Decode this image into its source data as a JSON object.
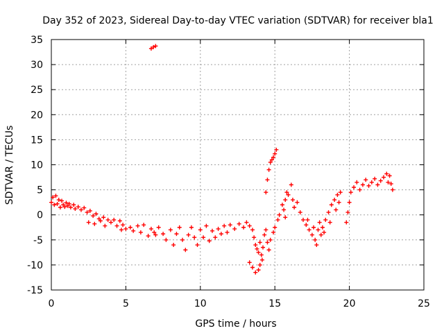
{
  "chart_data": {
    "type": "scatter",
    "title": "Day 352 of 2023, Sidereal Day-to-day VTEC variation (SDTVAR) for receiver bla1",
    "xlabel": "GPS time / hours",
    "ylabel": "SDTVAR / TECUs",
    "xlim": [
      0,
      25
    ],
    "ylim": [
      -15,
      35
    ],
    "xticks": [
      0,
      5,
      10,
      15,
      20,
      25
    ],
    "yticks": [
      -15,
      -10,
      -5,
      0,
      5,
      10,
      15,
      20,
      25,
      30,
      35
    ],
    "grid": true,
    "marker": "plus",
    "color": "#ff0000",
    "series": [
      {
        "name": "SDTVAR",
        "points": [
          [
            0.0,
            2.5
          ],
          [
            0.1,
            3.5
          ],
          [
            0.2,
            2.0
          ],
          [
            0.3,
            3.8
          ],
          [
            0.4,
            2.2
          ],
          [
            0.5,
            3.0
          ],
          [
            0.6,
            1.5
          ],
          [
            0.7,
            2.8
          ],
          [
            0.8,
            2.0
          ],
          [
            0.9,
            1.6
          ],
          [
            1.0,
            2.4
          ],
          [
            1.1,
            1.8
          ],
          [
            1.2,
            2.2
          ],
          [
            1.3,
            1.5
          ],
          [
            1.5,
            2.0
          ],
          [
            1.6,
            1.2
          ],
          [
            1.8,
            1.6
          ],
          [
            2.0,
            1.0
          ],
          [
            2.2,
            1.4
          ],
          [
            2.4,
            0.5
          ],
          [
            2.5,
            -1.5
          ],
          [
            2.6,
            0.8
          ],
          [
            2.8,
            -0.2
          ],
          [
            2.9,
            -1.8
          ],
          [
            3.0,
            0.2
          ],
          [
            3.2,
            -0.8
          ],
          [
            3.3,
            -1.2
          ],
          [
            3.5,
            -0.5
          ],
          [
            3.6,
            -2.2
          ],
          [
            3.8,
            -1.0
          ],
          [
            4.0,
            -1.5
          ],
          [
            4.2,
            -1.0
          ],
          [
            4.4,
            -2.2
          ],
          [
            4.6,
            -1.2
          ],
          [
            4.7,
            -3.0
          ],
          [
            4.8,
            -2.0
          ],
          [
            5.0,
            -2.8
          ],
          [
            5.3,
            -2.5
          ],
          [
            5.5,
            -3.2
          ],
          [
            5.8,
            -2.2
          ],
          [
            6.0,
            -3.5
          ],
          [
            6.2,
            -2.0
          ],
          [
            6.5,
            -4.2
          ],
          [
            6.7,
            -2.8
          ],
          [
            6.9,
            -3.5
          ],
          [
            7.0,
            -4.0
          ],
          [
            7.2,
            -2.5
          ],
          [
            7.5,
            -3.8
          ],
          [
            7.7,
            -5.0
          ],
          [
            8.0,
            -3.0
          ],
          [
            8.2,
            -6.0
          ],
          [
            8.4,
            -3.8
          ],
          [
            8.6,
            -2.5
          ],
          [
            8.8,
            -5.0
          ],
          [
            9.0,
            -7.0
          ],
          [
            9.2,
            -4.0
          ],
          [
            9.4,
            -2.5
          ],
          [
            9.6,
            -4.5
          ],
          [
            9.8,
            -6.0
          ],
          [
            10.0,
            -3.0
          ],
          [
            10.2,
            -4.5
          ],
          [
            10.4,
            -2.2
          ],
          [
            10.6,
            -5.2
          ],
          [
            10.8,
            -3.2
          ],
          [
            11.0,
            -4.5
          ],
          [
            11.2,
            -2.8
          ],
          [
            11.4,
            -3.8
          ],
          [
            11.6,
            -2.2
          ],
          [
            11.8,
            -3.5
          ],
          [
            12.0,
            -2.0
          ],
          [
            12.3,
            -2.8
          ],
          [
            12.6,
            -1.8
          ],
          [
            12.9,
            -2.5
          ],
          [
            13.1,
            -1.5
          ],
          [
            13.3,
            -2.2
          ],
          [
            13.5,
            -3.0
          ],
          [
            13.6,
            -4.5
          ],
          [
            13.7,
            -6.0
          ],
          [
            13.8,
            -6.8
          ],
          [
            13.9,
            -7.5
          ],
          [
            14.0,
            -5.5
          ],
          [
            14.1,
            -8.0
          ],
          [
            14.2,
            -6.5
          ],
          [
            14.3,
            -4.0
          ],
          [
            14.4,
            -3.0
          ],
          [
            14.5,
            -5.5
          ],
          [
            14.6,
            -7.0
          ],
          [
            14.7,
            -5.0
          ],
          [
            14.9,
            -3.5
          ],
          [
            15.0,
            -2.5
          ],
          [
            13.3,
            -9.5
          ],
          [
            13.5,
            -10.5
          ],
          [
            13.7,
            -11.5
          ],
          [
            13.9,
            -11.0
          ],
          [
            14.0,
            -10.0
          ],
          [
            14.15,
            -9.0
          ],
          [
            14.4,
            4.5
          ],
          [
            14.5,
            7.0
          ],
          [
            14.6,
            9.0
          ],
          [
            14.7,
            10.5
          ],
          [
            14.8,
            11.0
          ],
          [
            14.9,
            11.5
          ],
          [
            15.0,
            12.2
          ],
          [
            15.1,
            13.0
          ],
          [
            15.2,
            -1.0
          ],
          [
            15.3,
            0.0
          ],
          [
            15.5,
            2.0
          ],
          [
            15.6,
            1.0
          ],
          [
            15.7,
            3.0
          ],
          [
            15.8,
            4.5
          ],
          [
            15.9,
            4.0
          ],
          [
            15.7,
            -0.5
          ],
          [
            16.1,
            6.0
          ],
          [
            16.2,
            3.0
          ],
          [
            16.3,
            1.5
          ],
          [
            16.5,
            2.5
          ],
          [
            16.7,
            0.5
          ],
          [
            16.9,
            -1.0
          ],
          [
            17.1,
            -2.0
          ],
          [
            17.3,
            -3.0
          ],
          [
            17.5,
            -4.0
          ],
          [
            17.7,
            -5.0
          ],
          [
            17.8,
            -6.0
          ],
          [
            17.9,
            -3.0
          ],
          [
            18.0,
            -1.5
          ],
          [
            18.2,
            -2.5
          ],
          [
            18.4,
            -1.0
          ],
          [
            18.6,
            0.5
          ],
          [
            18.8,
            2.0
          ],
          [
            19.0,
            3.0
          ],
          [
            19.2,
            4.0
          ],
          [
            19.4,
            4.5
          ],
          [
            17.2,
            -1.0
          ],
          [
            17.6,
            -2.5
          ],
          [
            18.1,
            -4.0
          ],
          [
            18.3,
            -3.5
          ],
          [
            18.7,
            -1.5
          ],
          [
            19.1,
            1.0
          ],
          [
            19.3,
            2.5
          ],
          [
            19.8,
            -1.5
          ],
          [
            19.9,
            0.5
          ],
          [
            20.0,
            2.5
          ],
          [
            20.1,
            4.5
          ],
          [
            20.3,
            5.5
          ],
          [
            20.5,
            6.5
          ],
          [
            20.7,
            5.0
          ],
          [
            20.9,
            6.0
          ],
          [
            21.1,
            7.0
          ],
          [
            21.3,
            5.8
          ],
          [
            21.5,
            6.5
          ],
          [
            21.7,
            7.2
          ],
          [
            21.9,
            6.0
          ],
          [
            22.1,
            6.8
          ],
          [
            22.3,
            7.5
          ],
          [
            22.5,
            8.2
          ],
          [
            22.6,
            6.5
          ],
          [
            22.7,
            7.8
          ],
          [
            22.8,
            6.2
          ],
          [
            22.9,
            5.0
          ],
          [
            6.7,
            33.2
          ],
          [
            6.85,
            33.5
          ],
          [
            7.0,
            33.7
          ]
        ]
      }
    ]
  }
}
